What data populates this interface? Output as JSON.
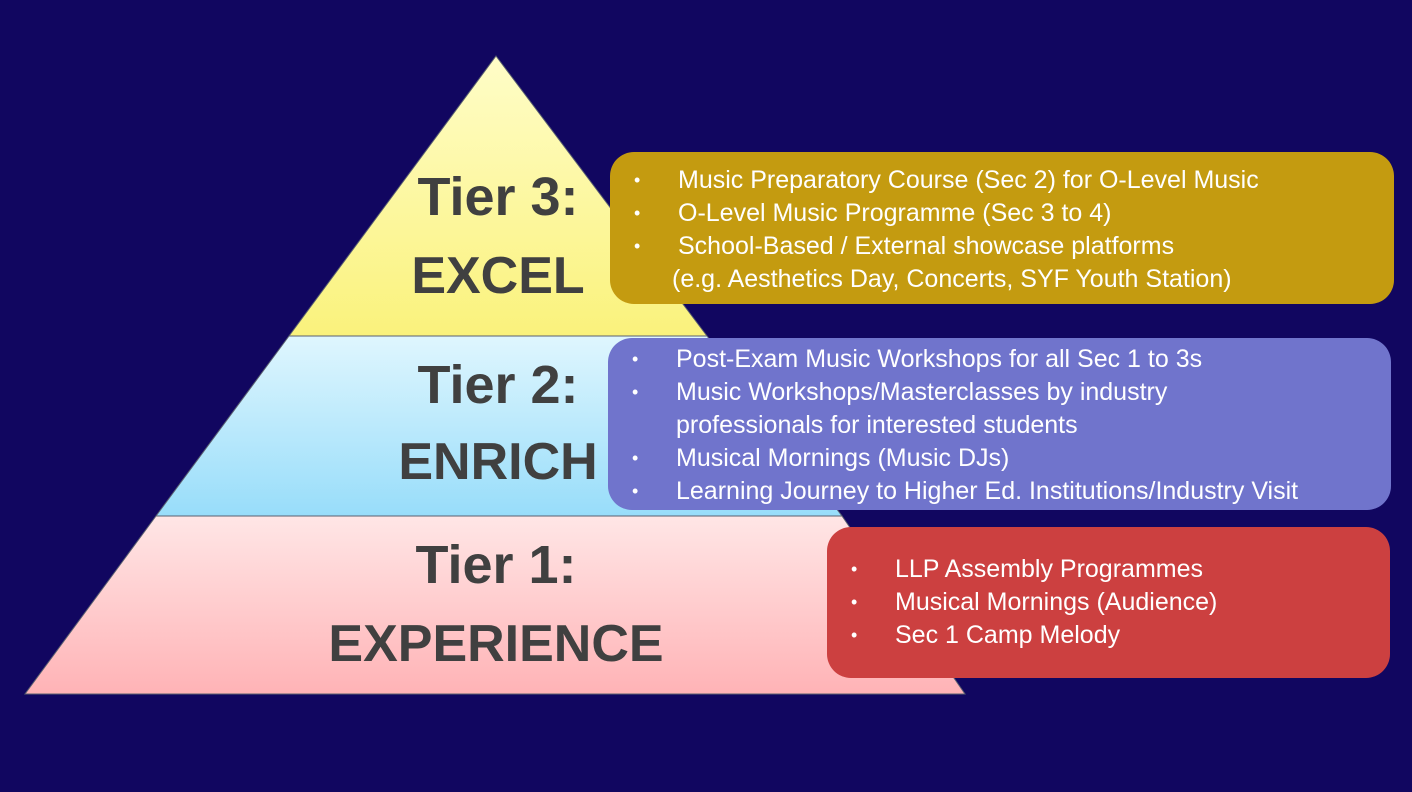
{
  "tiers": {
    "tier3": {
      "label": "Tier 3:",
      "name": "EXCEL",
      "box_color": "#c49b10",
      "fill_top": "#fffdc8",
      "fill_bottom": "#faf27c",
      "items": [
        {
          "text": "Music Preparatory Course (Sec 2) for O-Level Music"
        },
        {
          "text": "O-Level Music Programme (Sec 3 to 4)"
        },
        {
          "text": "School-Based / External showcase platforms",
          "continuation": "(e.g. Aesthetics Day, Concerts, SYF Youth Station)"
        }
      ]
    },
    "tier2": {
      "label": "Tier 2:",
      "name": "ENRICH",
      "box_color": "#7074cc",
      "fill_top": "#dff6fe",
      "fill_bottom": "#98ddfa",
      "items": [
        {
          "text": "Post-Exam Music Workshops for all Sec 1 to 3s"
        },
        {
          "text": "Music Workshops/Masterclasses by industry",
          "continuation": "professionals for interested students"
        },
        {
          "text": "Musical Mornings (Music DJs)"
        },
        {
          "text": "Learning Journey to Higher Ed. Institutions/Industry Visit"
        }
      ]
    },
    "tier1": {
      "label": "Tier 1:",
      "name": "EXPERIENCE",
      "box_color": "#cc4040",
      "fill_top": "#ffe6e6",
      "fill_bottom": "#ffb3b6",
      "items": [
        {
          "text": "LLP Assembly Programmes"
        },
        {
          "text": "Musical Mornings (Audience)"
        },
        {
          "text": "Sec 1 Camp Melody"
        }
      ]
    }
  }
}
